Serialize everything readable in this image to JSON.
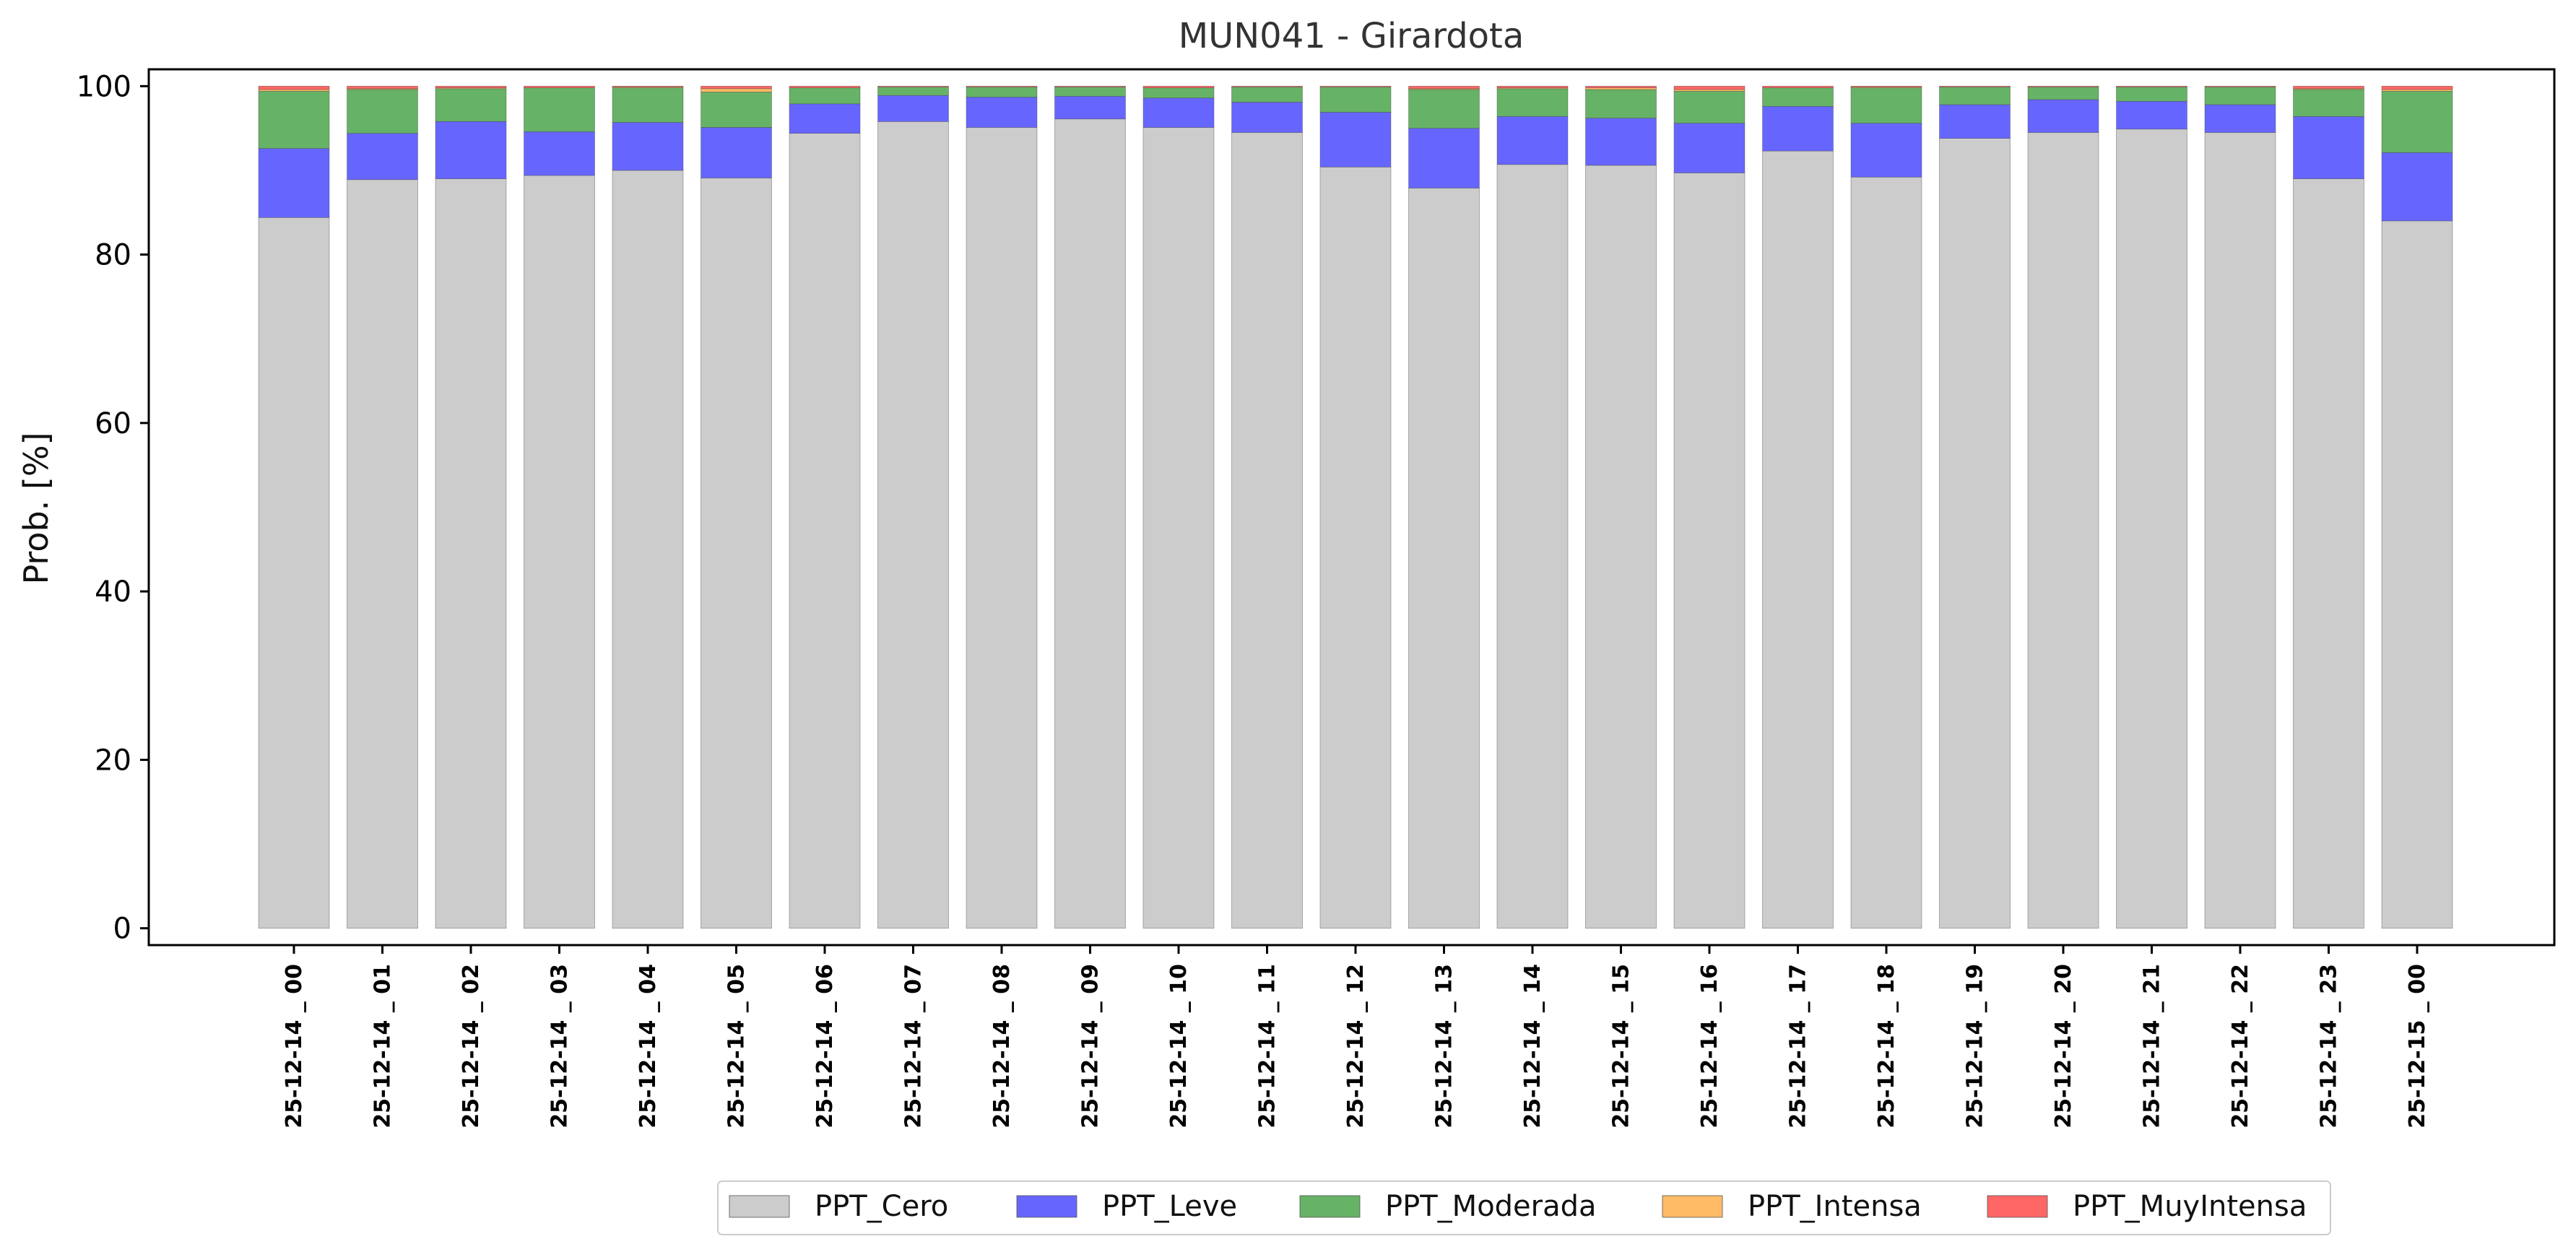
{
  "chart_data": {
    "type": "bar",
    "stacked": true,
    "title": "MUN041 - Girardota",
    "xlabel": "",
    "ylabel": "Prob. [%]",
    "ylim": [
      -2,
      102
    ],
    "yticks": [
      0,
      20,
      40,
      60,
      80,
      100
    ],
    "grid": false,
    "legend_position": "bottom-center",
    "categories": [
      "25-12-14 _ 00",
      "25-12-14 _ 01",
      "25-12-14 _ 02",
      "25-12-14 _ 03",
      "25-12-14 _ 04",
      "25-12-14 _ 05",
      "25-12-14 _ 06",
      "25-12-14 _ 07",
      "25-12-14 _ 08",
      "25-12-14 _ 09",
      "25-12-14 _ 10",
      "25-12-14 _ 11",
      "25-12-14 _ 12",
      "25-12-14 _ 13",
      "25-12-14 _ 14",
      "25-12-14 _ 15",
      "25-12-14 _ 16",
      "25-12-14 _ 17",
      "25-12-14 _ 18",
      "25-12-14 _ 19",
      "25-12-14 _ 20",
      "25-12-14 _ 21",
      "25-12-14 _ 22",
      "25-12-14 _ 23",
      "25-12-15 _ 00"
    ],
    "series": [
      {
        "name": "PPT_Cero",
        "color": "#cccccc",
        "values": [
          84.4,
          88.9,
          89.0,
          89.4,
          90.0,
          89.1,
          94.4,
          95.8,
          95.1,
          96.1,
          95.1,
          94.5,
          90.4,
          87.9,
          90.7,
          90.6,
          89.7,
          92.3,
          89.2,
          93.8,
          94.5,
          94.9,
          94.5,
          89.0,
          84.0
        ]
      },
      {
        "name": "PPT_Leve",
        "color": "#6666ff",
        "values": [
          8.2,
          5.5,
          6.8,
          5.2,
          5.7,
          6.0,
          3.5,
          3.1,
          3.6,
          2.7,
          3.5,
          3.6,
          6.5,
          7.1,
          5.7,
          5.6,
          5.9,
          5.3,
          6.4,
          4.0,
          3.9,
          3.3,
          3.3,
          7.4,
          8.1
        ]
      },
      {
        "name": "PPT_Moderada",
        "color": "#66b266",
        "values": [
          6.8,
          5.2,
          3.9,
          5.2,
          4.1,
          4.2,
          1.9,
          1.0,
          1.2,
          1.1,
          1.2,
          1.8,
          3.0,
          4.6,
          3.3,
          3.4,
          3.8,
          2.2,
          4.2,
          2.1,
          1.5,
          1.7,
          2.1,
          3.2,
          7.3
        ]
      },
      {
        "name": "PPT_Intensa",
        "color": "#ffbb66",
        "values": [
          0.2,
          0.1,
          0.1,
          0.0,
          0.1,
          0.4,
          0.0,
          0.0,
          0.0,
          0.0,
          0.0,
          0.0,
          0.0,
          0.1,
          0.1,
          0.2,
          0.2,
          0.0,
          0.1,
          0.0,
          0.0,
          0.0,
          0.0,
          0.1,
          0.2
        ]
      },
      {
        "name": "PPT_MuyIntensa",
        "color": "#ff6666",
        "values": [
          0.4,
          0.3,
          0.2,
          0.2,
          0.1,
          0.3,
          0.2,
          0.1,
          0.1,
          0.1,
          0.2,
          0.1,
          0.1,
          0.3,
          0.2,
          0.2,
          0.4,
          0.2,
          0.1,
          0.1,
          0.1,
          0.1,
          0.1,
          0.3,
          0.4
        ]
      }
    ]
  }
}
